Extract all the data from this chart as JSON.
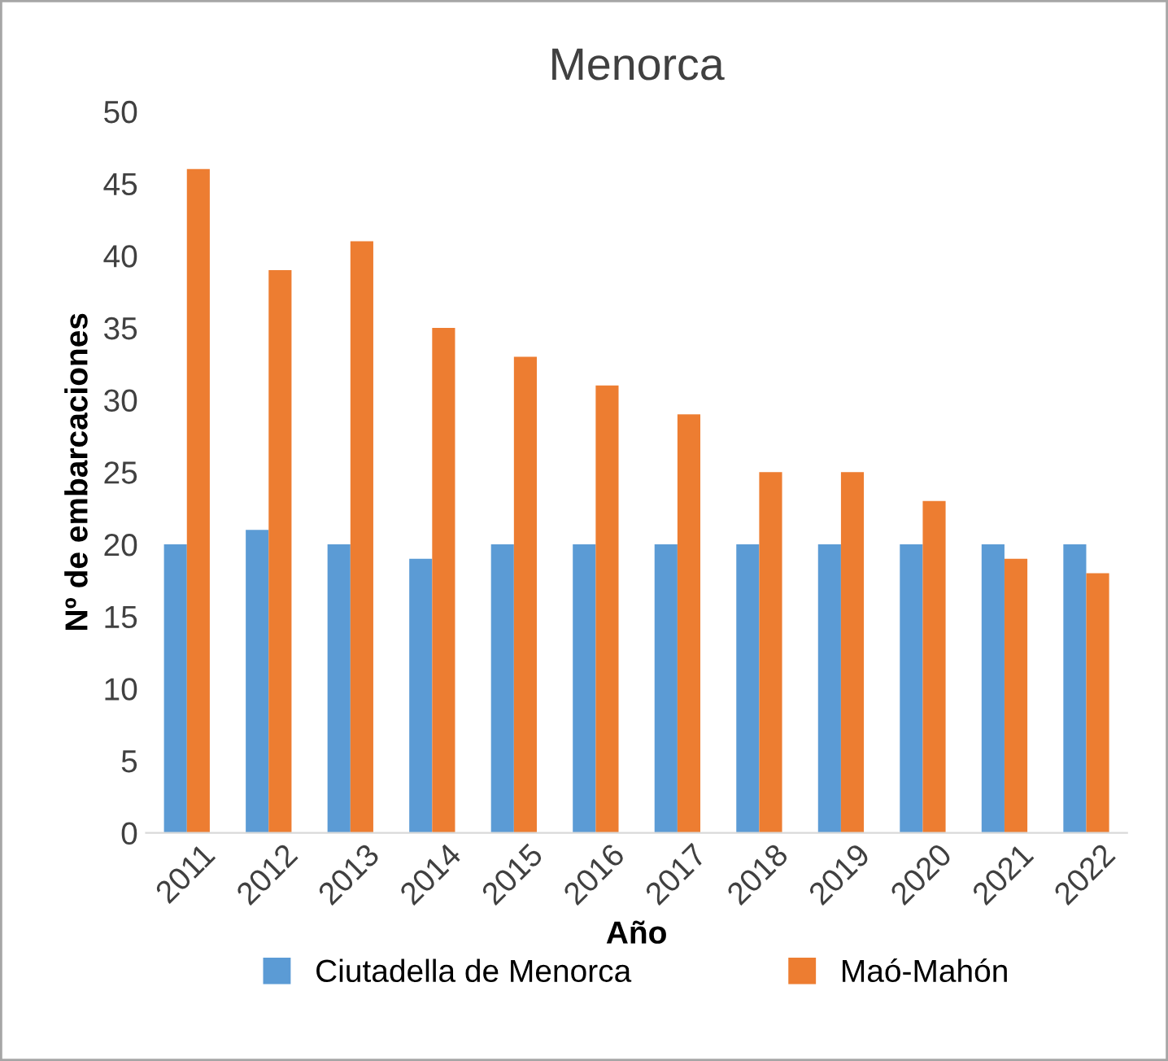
{
  "chart_data": {
    "type": "bar",
    "title": "Menorca",
    "xlabel": "Año",
    "ylabel": "Nº de embarcaciones",
    "categories": [
      "2011",
      "2012",
      "2013",
      "2014",
      "2015",
      "2016",
      "2017",
      "2018",
      "2019",
      "2020",
      "2021",
      "2022"
    ],
    "series": [
      {
        "name": "Ciutadella de Menorca",
        "color": "#5b9bd5",
        "values": [
          20,
          21,
          20,
          19,
          20,
          20,
          20,
          20,
          20,
          20,
          20,
          20
        ]
      },
      {
        "name": "Maó-Mahón",
        "color": "#ed7d31",
        "values": [
          46,
          39,
          41,
          35,
          33,
          31,
          29,
          25,
          25,
          23,
          19,
          18
        ]
      }
    ],
    "ylim": [
      0,
      50
    ],
    "yticks": [
      0,
      5,
      10,
      15,
      20,
      25,
      30,
      35,
      40,
      45,
      50
    ],
    "grid": false,
    "legend": "bottom"
  }
}
